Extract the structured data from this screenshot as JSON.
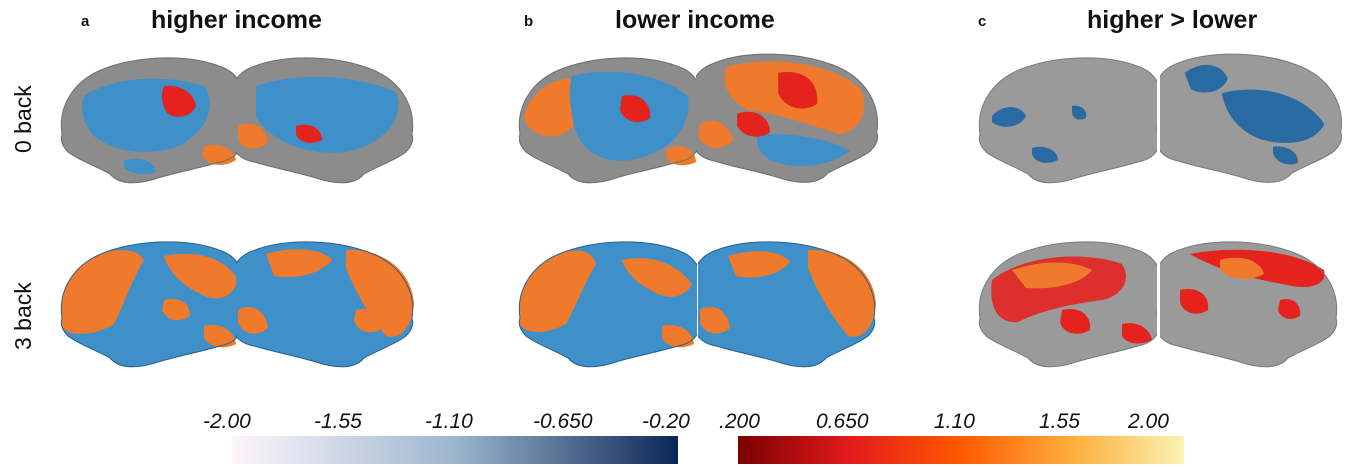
{
  "panels": [
    {
      "letter": "a",
      "title": "higher income"
    },
    {
      "letter": "b",
      "title": "lower income"
    },
    {
      "letter": "c",
      "title": "higher > lower"
    }
  ],
  "rows": [
    {
      "label": "0 back"
    },
    {
      "label": "3 back"
    }
  ],
  "colorbar": {
    "negative": {
      "ticks": [
        "-2.00",
        "-1.55",
        "-1.10",
        "-0.650",
        "-0.20"
      ],
      "colors": [
        "#fdf6fb",
        "#9cb6cf",
        "#0b2756"
      ]
    },
    "positive": {
      "ticks": [
        ".200",
        "0.650",
        "1.10",
        "1.55",
        "2.00"
      ],
      "colors": [
        "#7a0000",
        "#e31a1c",
        "#ff5a00",
        "#fdae3a",
        "#fbf3b5"
      ]
    }
  },
  "colors": {
    "cortex": "#8c8c8c",
    "cortex_light": "#a8a8a8",
    "blue": "#3f8fc8",
    "blue_dark": "#2a6aa2",
    "orange": "#f07a2c",
    "red": "#e4231f"
  }
}
